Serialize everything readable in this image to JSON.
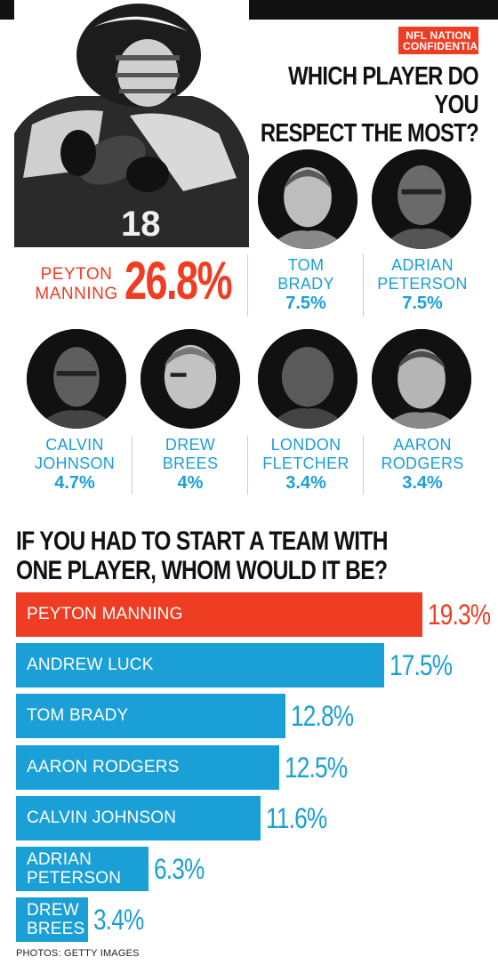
{
  "header": {
    "badge_line1": "NFL NATION",
    "badge_line2": "CONFIDENTIAL",
    "question1_line1": "WHICH PLAYER DO YOU",
    "question1_line2": "RESPECT THE MOST?"
  },
  "colors": {
    "accent_red": "#ee3d23",
    "accent_blue": "#1a9fd6",
    "text_dark": "#111111"
  },
  "respect": {
    "top": {
      "name_line1": "PEYTON",
      "name_line2": "MANNING",
      "value": "26.8%"
    },
    "others": [
      {
        "name_line1": "TOM",
        "name_line2": "BRADY",
        "value": "7.5%"
      },
      {
        "name_line1": "ADRIAN",
        "name_line2": "PETERSON",
        "value": "7.5%"
      },
      {
        "name_line1": "CALVIN",
        "name_line2": "JOHNSON",
        "value": "4.7%"
      },
      {
        "name_line1": "DREW",
        "name_line2": "BREES",
        "value": "4%"
      },
      {
        "name_line1": "LONDON",
        "name_line2": "FLETCHER",
        "value": "3.4%"
      },
      {
        "name_line1": "AARON",
        "name_line2": "RODGERS",
        "value": "3.4%"
      }
    ]
  },
  "question2_line1": "IF YOU HAD TO START A TEAM WITH",
  "question2_line2": "ONE PLAYER, WHOM WOULD IT BE?",
  "chart_data": [
    {
      "type": "table",
      "title": "WHICH PLAYER DO YOU RESPECT THE MOST?",
      "categories": [
        "PEYTON MANNING",
        "TOM BRADY",
        "ADRIAN PETERSON",
        "CALVIN JOHNSON",
        "DREW BREES",
        "LONDON FLETCHER",
        "AARON RODGERS"
      ],
      "values": [
        26.8,
        7.5,
        7.5,
        4.7,
        4,
        3.4,
        3.4
      ]
    },
    {
      "type": "bar",
      "orientation": "horizontal",
      "title": "IF YOU HAD TO START A TEAM WITH ONE PLAYER, WHOM WOULD IT BE?",
      "categories": [
        [
          "PEYTON MANNING"
        ],
        [
          "ANDREW LUCK"
        ],
        [
          "TOM BRADY"
        ],
        [
          "AARON RODGERS"
        ],
        [
          "CALVIN JOHNSON"
        ],
        [
          "ADRIAN",
          "PETERSON"
        ],
        [
          "DREW",
          "BREES"
        ]
      ],
      "values": [
        19.3,
        17.5,
        12.8,
        12.5,
        11.6,
        6.3,
        3.4
      ],
      "value_labels": [
        "19.3%",
        "17.5%",
        "12.8%",
        "12.5%",
        "11.6%",
        "6.3%",
        "3.4%"
      ],
      "highlight_index": 0,
      "grid": false
    }
  ],
  "credit": "PHOTOS: GETTY IMAGES"
}
